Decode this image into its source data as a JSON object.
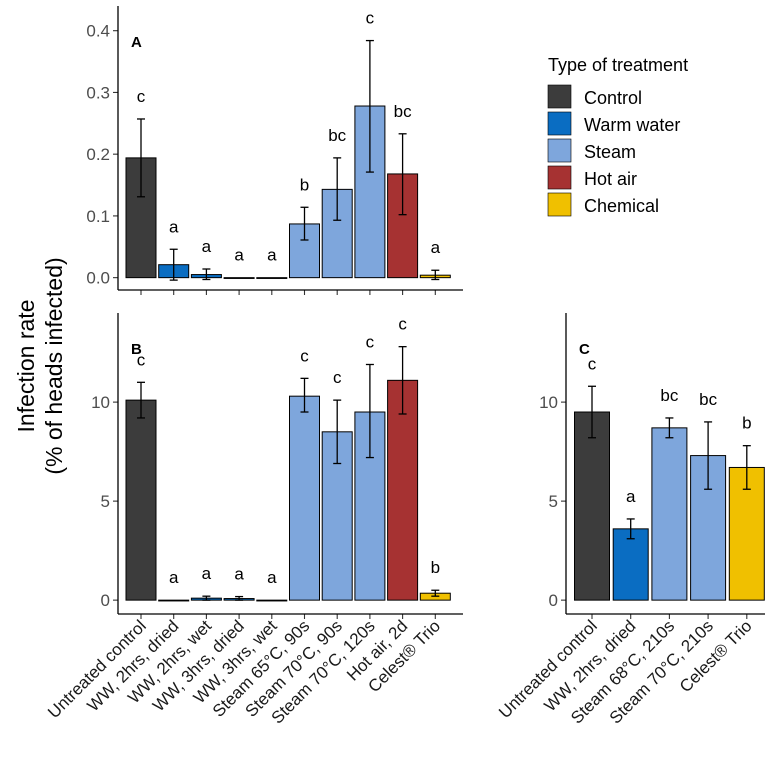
{
  "chart_data": {
    "type": "bar",
    "ylabel_line1": "Infection rate",
    "ylabel_line2": "(% of heads infected)",
    "legend": {
      "title": "Type of treatment",
      "items": [
        {
          "name": "Control",
          "color": "#3c3c3c"
        },
        {
          "name": "Warm water",
          "color": "#0a6dc2"
        },
        {
          "name": "Steam",
          "color": "#7ea6dc"
        },
        {
          "name": "Hot air",
          "color": "#a63232"
        },
        {
          "name": "Chemical",
          "color": "#f0c000"
        }
      ]
    },
    "panels": [
      {
        "id": "A",
        "ylim": [
          -0.02,
          0.44
        ],
        "yticks": [
          0.0,
          0.1,
          0.2,
          0.3,
          0.4
        ],
        "ytick_labels": [
          "0.0",
          "0.1",
          "0.2",
          "0.3",
          "0.4"
        ],
        "categories": [
          "Untreated control",
          "WW, 2hrs, dried",
          "WW, 2hrs, wet",
          "WW, 3hrs, dried",
          "WW, 3hrs, wet",
          "Steam 65°C, 90s",
          "Steam 70°C, 90s",
          "Steam 70°C, 120s",
          "Hot air, 2d",
          "Celest® Trio"
        ],
        "show_category_labels": false,
        "values": [
          0.194,
          0.021,
          0.005,
          0.0,
          0.0,
          0.087,
          0.143,
          0.278,
          0.168,
          0.004
        ],
        "err_low": [
          0.131,
          -0.004,
          -0.003,
          0.0,
          0.0,
          0.061,
          0.093,
          0.171,
          0.102,
          -0.003
        ],
        "err_high": [
          0.257,
          0.046,
          0.014,
          0.0,
          0.0,
          0.114,
          0.194,
          0.384,
          0.233,
          0.012
        ],
        "groups": [
          "Control",
          "Warm water",
          "Warm water",
          "Warm water",
          "Warm water",
          "Steam",
          "Steam",
          "Steam",
          "Hot air",
          "Chemical"
        ],
        "letters": [
          "c",
          "a",
          "a",
          "a",
          "a",
          "b",
          "bc",
          "c",
          "bc",
          "a"
        ]
      },
      {
        "id": "B",
        "ylim": [
          -0.7,
          14.5
        ],
        "yticks": [
          0,
          5,
          10
        ],
        "ytick_labels": [
          "0",
          "5",
          "10"
        ],
        "categories": [
          "Untreated control",
          "WW, 2hrs, dried",
          "WW, 2hrs, wet",
          "WW, 3hrs, dried",
          "WW, 3hrs, wet",
          "Steam 65°C, 90s",
          "Steam 70°C, 90s",
          "Steam 70°C, 120s",
          "Hot air, 2d",
          "Celest® Trio"
        ],
        "show_category_labels": true,
        "values": [
          10.1,
          0.0,
          0.1,
          0.08,
          0.0,
          10.3,
          8.5,
          9.5,
          11.1,
          0.35
        ],
        "err_low": [
          9.2,
          0.0,
          0.0,
          0.0,
          0.0,
          9.5,
          6.9,
          7.2,
          9.4,
          0.2
        ],
        "err_high": [
          11.0,
          0.0,
          0.2,
          0.18,
          0.0,
          11.2,
          10.1,
          11.9,
          12.8,
          0.5
        ],
        "groups": [
          "Control",
          "Warm water",
          "Warm water",
          "Warm water",
          "Warm water",
          "Steam",
          "Steam",
          "Steam",
          "Hot air",
          "Chemical"
        ],
        "letters": [
          "c",
          "a",
          "a",
          "a",
          "a",
          "c",
          "c",
          "c",
          "c",
          "b"
        ]
      },
      {
        "id": "C",
        "ylim": [
          -0.7,
          14.5
        ],
        "yticks": [
          0,
          5,
          10
        ],
        "ytick_labels": [
          "0",
          "5",
          "10"
        ],
        "categories": [
          "Untreated control",
          "WW, 2hrs, dried",
          "Steam 68°C, 210s",
          "Steam 70°C, 210s",
          "Celest® Trio"
        ],
        "show_category_labels": true,
        "values": [
          9.5,
          3.6,
          8.7,
          7.3,
          6.7
        ],
        "err_low": [
          8.2,
          3.1,
          8.2,
          5.6,
          5.6
        ],
        "err_high": [
          10.8,
          4.1,
          9.2,
          9.0,
          7.8
        ],
        "groups": [
          "Control",
          "Warm water",
          "Steam",
          "Steam",
          "Chemical"
        ],
        "letters": [
          "c",
          "a",
          "bc",
          "bc",
          "b"
        ]
      }
    ]
  }
}
